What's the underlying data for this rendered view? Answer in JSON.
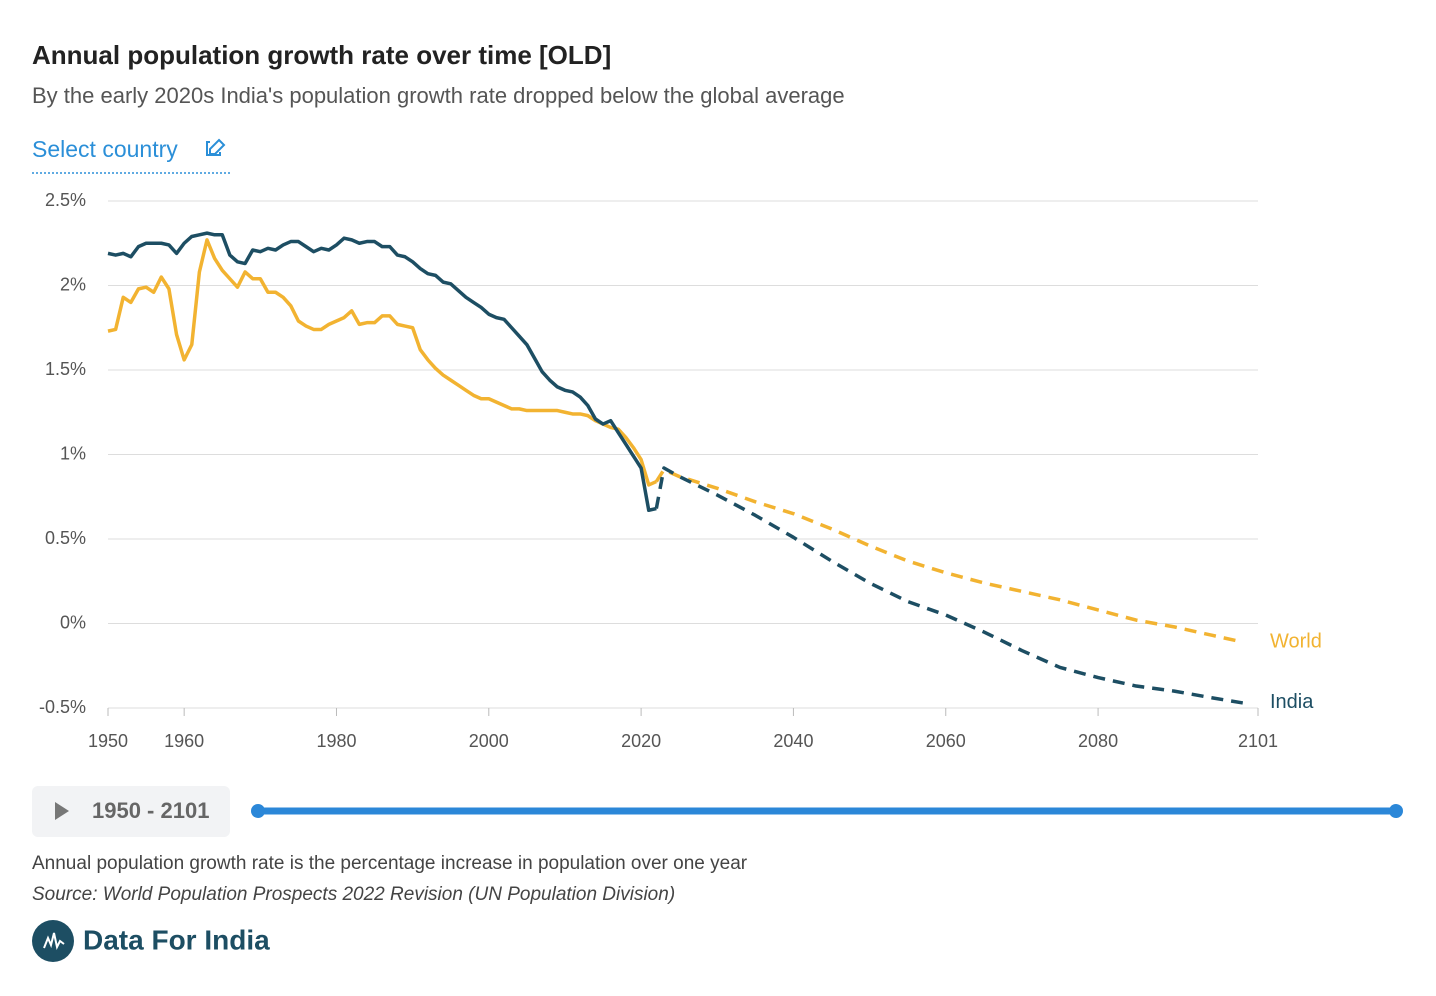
{
  "chart_data": {
    "type": "line",
    "title": "Annual population growth rate over time [OLD]",
    "subtitle": "By the early 2020s India's population growth rate dropped below the global average",
    "x": [
      1950,
      1951,
      1952,
      1953,
      1954,
      1955,
      1956,
      1957,
      1958,
      1959,
      1960,
      1961,
      1962,
      1963,
      1964,
      1965,
      1966,
      1967,
      1968,
      1969,
      1970,
      1971,
      1972,
      1973,
      1974,
      1975,
      1976,
      1977,
      1978,
      1979,
      1980,
      1981,
      1982,
      1983,
      1984,
      1985,
      1986,
      1987,
      1988,
      1989,
      1990,
      1991,
      1992,
      1993,
      1994,
      1995,
      1996,
      1997,
      1998,
      1999,
      2000,
      2001,
      2002,
      2003,
      2004,
      2005,
      2006,
      2007,
      2008,
      2009,
      2010,
      2011,
      2012,
      2013,
      2014,
      2015,
      2016,
      2017,
      2018,
      2019,
      2020,
      2021,
      2022,
      2023,
      2025,
      2030,
      2035,
      2040,
      2045,
      2050,
      2055,
      2060,
      2065,
      2070,
      2075,
      2080,
      2085,
      2090,
      2095,
      2099
    ],
    "series": [
      {
        "name": "World",
        "color": "#f2b331",
        "values": [
          1.73,
          1.74,
          1.93,
          1.9,
          1.98,
          1.99,
          1.96,
          2.05,
          1.98,
          1.71,
          1.56,
          1.65,
          2.08,
          2.27,
          2.16,
          2.09,
          2.04,
          1.99,
          2.08,
          2.04,
          2.04,
          1.96,
          1.96,
          1.93,
          1.88,
          1.79,
          1.76,
          1.74,
          1.74,
          1.77,
          1.79,
          1.81,
          1.85,
          1.77,
          1.78,
          1.78,
          1.82,
          1.82,
          1.77,
          1.76,
          1.75,
          1.62,
          1.56,
          1.51,
          1.47,
          1.44,
          1.41,
          1.38,
          1.35,
          1.33,
          1.33,
          1.31,
          1.29,
          1.27,
          1.27,
          1.26,
          1.26,
          1.26,
          1.26,
          1.26,
          1.25,
          1.24,
          1.24,
          1.23,
          1.2,
          1.18,
          1.16,
          1.15,
          1.1,
          1.04,
          0.97,
          0.82,
          0.84,
          0.91,
          0.87,
          0.8,
          0.72,
          0.65,
          0.56,
          0.46,
          0.37,
          0.3,
          0.24,
          0.19,
          0.14,
          0.08,
          0.02,
          -0.02,
          -0.07,
          -0.11
        ]
      },
      {
        "name": "India",
        "color": "#1d4e63",
        "values": [
          2.19,
          2.18,
          2.19,
          2.17,
          2.23,
          2.25,
          2.25,
          2.25,
          2.24,
          2.19,
          2.25,
          2.29,
          2.3,
          2.31,
          2.3,
          2.3,
          2.18,
          2.14,
          2.13,
          2.21,
          2.2,
          2.22,
          2.21,
          2.24,
          2.26,
          2.26,
          2.23,
          2.2,
          2.22,
          2.21,
          2.24,
          2.28,
          2.27,
          2.25,
          2.26,
          2.26,
          2.23,
          2.23,
          2.18,
          2.17,
          2.14,
          2.1,
          2.07,
          2.06,
          2.02,
          2.01,
          1.97,
          1.93,
          1.9,
          1.87,
          1.83,
          1.81,
          1.8,
          1.75,
          1.7,
          1.65,
          1.57,
          1.49,
          1.44,
          1.4,
          1.38,
          1.37,
          1.34,
          1.29,
          1.21,
          1.18,
          1.2,
          1.13,
          1.06,
          0.99,
          0.92,
          0.67,
          0.68,
          0.92,
          0.87,
          0.76,
          0.64,
          0.51,
          0.37,
          0.24,
          0.13,
          0.05,
          -0.05,
          -0.16,
          -0.26,
          -0.32,
          -0.37,
          -0.4,
          -0.44,
          -0.47
        ]
      }
    ],
    "dashed_from": 2022,
    "xlim": [
      1950,
      2101
    ],
    "xticks": [
      1950,
      1960,
      1980,
      2000,
      2020,
      2040,
      2060,
      2080,
      2101
    ],
    "ylim": [
      -0.5,
      2.5
    ],
    "yticks": [
      {
        "value": 2.5,
        "label": "2.5%"
      },
      {
        "value": 2,
        "label": "2%"
      },
      {
        "value": 1.5,
        "label": "1.5%"
      },
      {
        "value": 1,
        "label": "1%"
      },
      {
        "value": 0.5,
        "label": "0.5%"
      },
      {
        "value": 0,
        "label": "0%"
      },
      {
        "value": -0.5,
        "label": "-0.5%"
      }
    ],
    "grid": true
  },
  "controls": {
    "select_country": "Select country",
    "range": "1950 - 2101"
  },
  "footer": {
    "note": "Annual population growth rate is the percentage increase in population over one year",
    "source": "Source: World Population Prospects 2022 Revision (UN Population Division)",
    "brand": "Data For India"
  }
}
